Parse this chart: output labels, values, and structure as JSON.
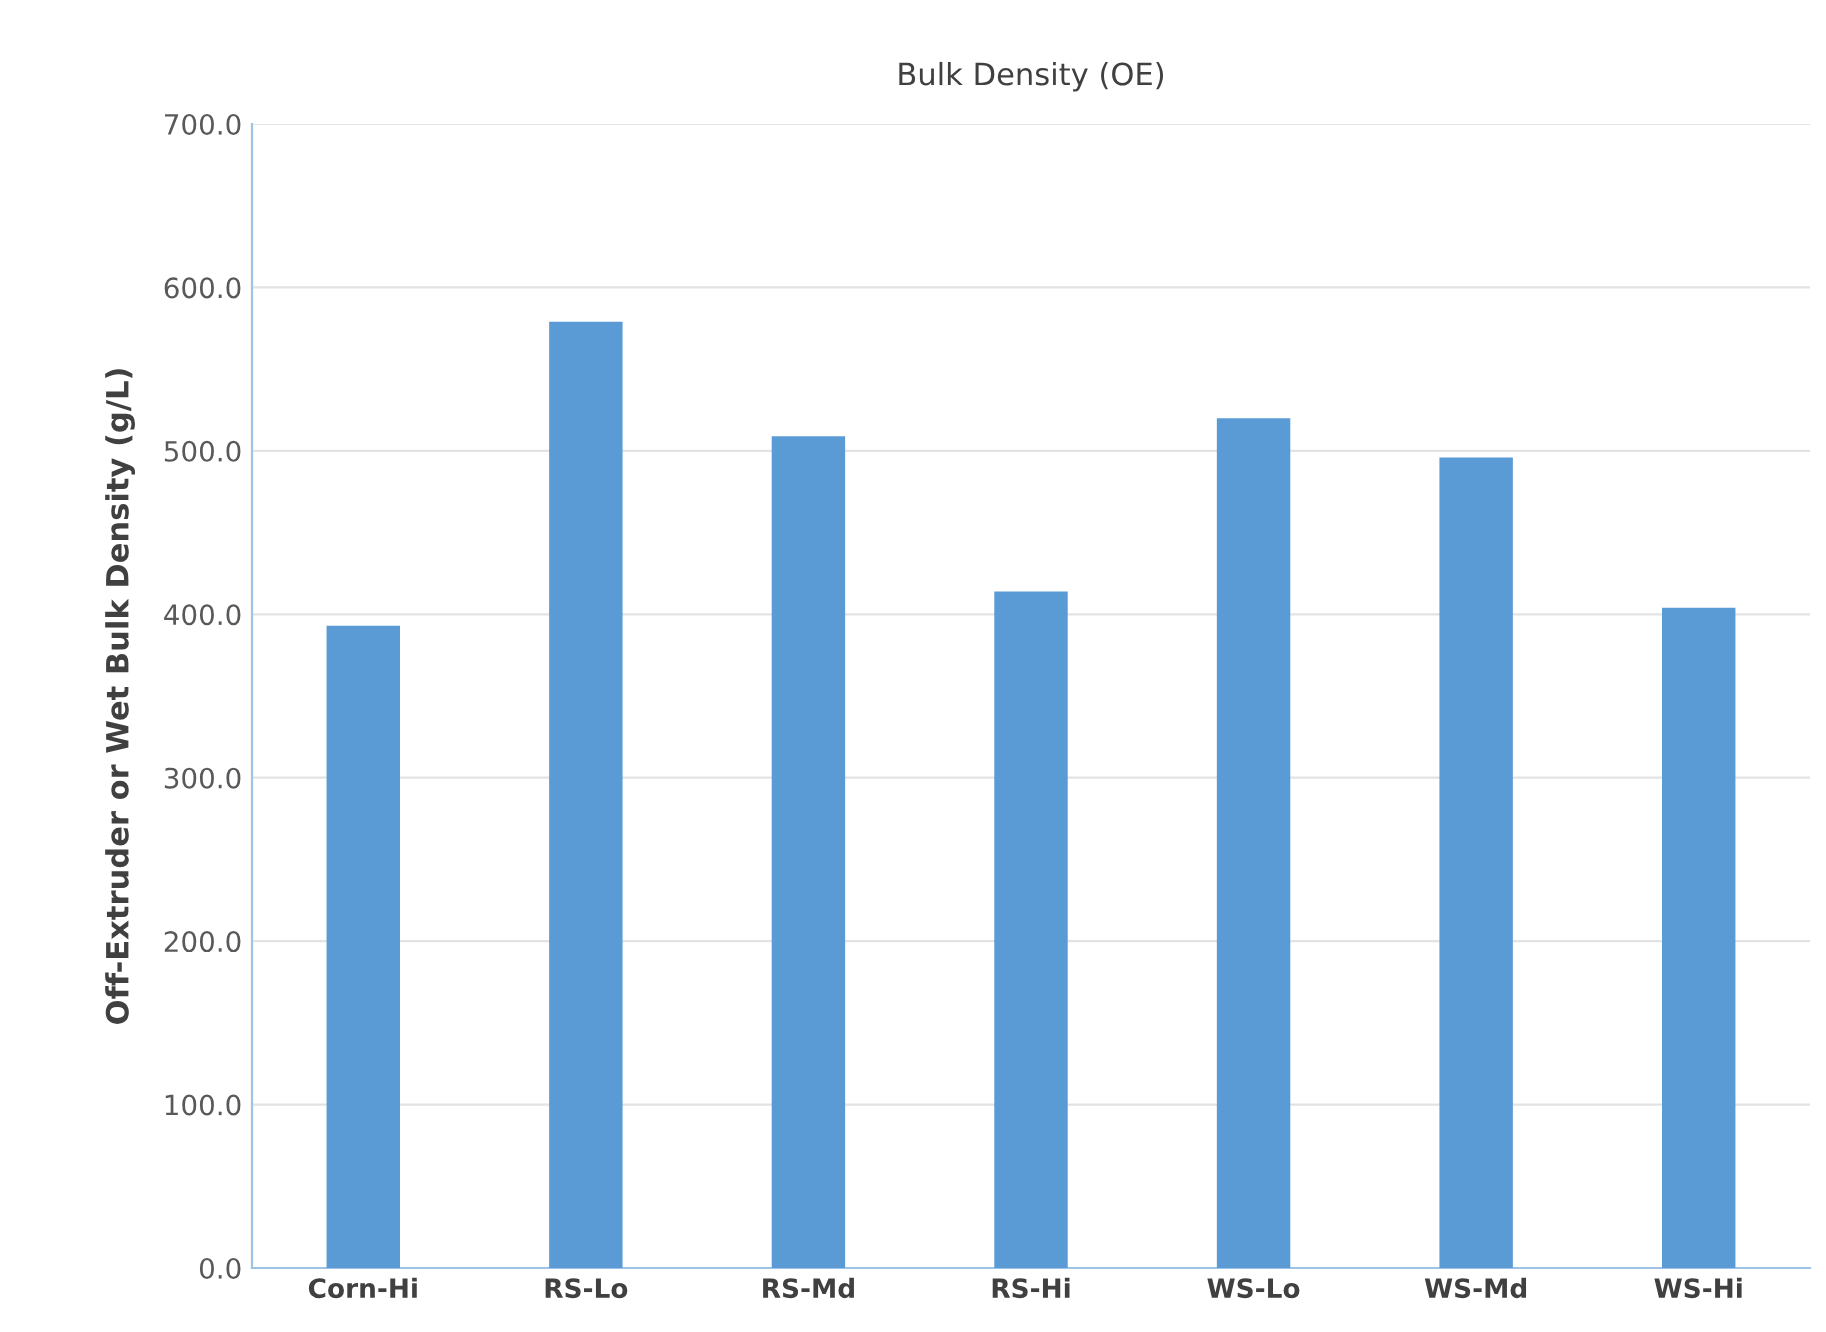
{
  "chart_data": {
    "type": "bar",
    "title": "Bulk Density (OE)",
    "ylabel": "Off-Extruder or Wet Bulk Density (g/L)",
    "categories": [
      "Corn-Hi",
      "RS-Lo",
      "RS-Md",
      "RS-Hi",
      "WS-Lo",
      "WS-Md",
      "WS-Hi"
    ],
    "values": [
      393,
      579,
      509,
      414,
      520,
      496,
      404
    ],
    "color": "#5b9bd5",
    "ylim": [
      0,
      700
    ],
    "yticks": [
      {
        "value": 0,
        "label": "0.0"
      },
      {
        "value": 100,
        "label": "100.0"
      },
      {
        "value": 200,
        "label": "200.0"
      },
      {
        "value": 300,
        "label": "300.0"
      },
      {
        "value": 400,
        "label": "400.0"
      },
      {
        "value": 500,
        "label": "500.0"
      },
      {
        "value": 600,
        "label": "600.0"
      },
      {
        "value": 700,
        "label": "700.0"
      }
    ],
    "grid": "y"
  }
}
